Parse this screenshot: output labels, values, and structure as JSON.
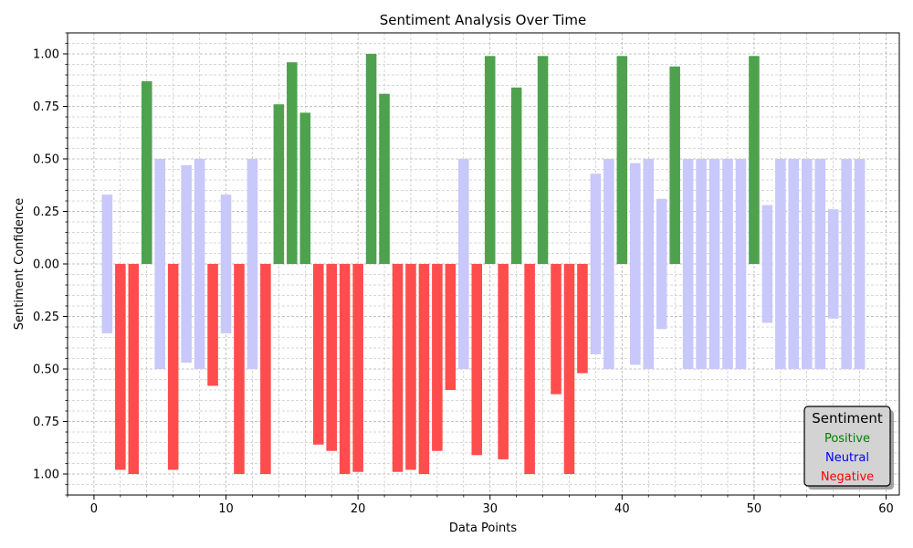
{
  "chart_data": {
    "type": "bar",
    "title": "Sentiment Analysis Over Time",
    "xlabel": "Data Points",
    "ylabel": "Sentiment Confidence",
    "xlim": [
      -2,
      61
    ],
    "ylim": [
      -1.1,
      1.1
    ],
    "x_ticks": [
      0,
      10,
      20,
      30,
      40,
      50,
      60
    ],
    "y_ticks": [
      1.0,
      0.75,
      0.5,
      0.25,
      0.0,
      -0.25,
      -0.5,
      -0.75,
      -1.0
    ],
    "y_tick_labels": [
      "1.00",
      "0.75",
      "0.50",
      "0.25",
      "0.00",
      "0.25",
      "0.50",
      "0.75",
      "1.00"
    ],
    "grid": true,
    "legend": {
      "title": "Sentiment",
      "placement": "lower-right",
      "entries": [
        {
          "label": "Positive",
          "color": "#008000"
        },
        {
          "label": "Neutral",
          "color": "#0000ff"
        },
        {
          "label": "Negative",
          "color": "#ff0000"
        }
      ]
    },
    "colors": {
      "Positive": "#4ea24e",
      "Neutral": "#c8c8fa",
      "Negative": "#ff4d4d"
    },
    "bars": [
      {
        "x": 1,
        "s": "Neutral",
        "v": 0.33
      },
      {
        "x": 2,
        "s": "Negative",
        "v": 0.98
      },
      {
        "x": 3,
        "s": "Negative",
        "v": 1.0
      },
      {
        "x": 4,
        "s": "Positive",
        "v": 0.87
      },
      {
        "x": 5,
        "s": "Neutral",
        "v": 0.5
      },
      {
        "x": 6,
        "s": "Negative",
        "v": 0.98
      },
      {
        "x": 7,
        "s": "Neutral",
        "v": 0.47
      },
      {
        "x": 8,
        "s": "Neutral",
        "v": 0.5
      },
      {
        "x": 9,
        "s": "Negative",
        "v": 0.58
      },
      {
        "x": 10,
        "s": "Neutral",
        "v": 0.33
      },
      {
        "x": 11,
        "s": "Negative",
        "v": 1.0
      },
      {
        "x": 12,
        "s": "Neutral",
        "v": 0.5
      },
      {
        "x": 13,
        "s": "Negative",
        "v": 1.0
      },
      {
        "x": 14,
        "s": "Positive",
        "v": 0.76
      },
      {
        "x": 15,
        "s": "Positive",
        "v": 0.96
      },
      {
        "x": 16,
        "s": "Positive",
        "v": 0.72
      },
      {
        "x": 17,
        "s": "Negative",
        "v": 0.86
      },
      {
        "x": 18,
        "s": "Negative",
        "v": 0.89
      },
      {
        "x": 19,
        "s": "Negative",
        "v": 1.0
      },
      {
        "x": 20,
        "s": "Negative",
        "v": 0.99
      },
      {
        "x": 21,
        "s": "Positive",
        "v": 1.0
      },
      {
        "x": 22,
        "s": "Positive",
        "v": 0.81
      },
      {
        "x": 23,
        "s": "Negative",
        "v": 0.99
      },
      {
        "x": 24,
        "s": "Negative",
        "v": 0.98
      },
      {
        "x": 25,
        "s": "Negative",
        "v": 1.0
      },
      {
        "x": 26,
        "s": "Negative",
        "v": 0.89
      },
      {
        "x": 27,
        "s": "Negative",
        "v": 0.6
      },
      {
        "x": 28,
        "s": "Neutral",
        "v": 0.5
      },
      {
        "x": 29,
        "s": "Negative",
        "v": 0.91
      },
      {
        "x": 30,
        "s": "Positive",
        "v": 0.99
      },
      {
        "x": 31,
        "s": "Negative",
        "v": 0.93
      },
      {
        "x": 32,
        "s": "Positive",
        "v": 0.84
      },
      {
        "x": 33,
        "s": "Negative",
        "v": 1.0
      },
      {
        "x": 34,
        "s": "Positive",
        "v": 0.99
      },
      {
        "x": 35,
        "s": "Negative",
        "v": 0.62
      },
      {
        "x": 36,
        "s": "Negative",
        "v": 1.0
      },
      {
        "x": 37,
        "s": "Negative",
        "v": 0.52
      },
      {
        "x": 38,
        "s": "Neutral",
        "v": 0.43
      },
      {
        "x": 39,
        "s": "Neutral",
        "v": 0.5
      },
      {
        "x": 40,
        "s": "Positive",
        "v": 0.99
      },
      {
        "x": 41,
        "s": "Neutral",
        "v": 0.48
      },
      {
        "x": 42,
        "s": "Neutral",
        "v": 0.5
      },
      {
        "x": 43,
        "s": "Neutral",
        "v": 0.31
      },
      {
        "x": 44,
        "s": "Positive",
        "v": 0.94
      },
      {
        "x": 45,
        "s": "Neutral",
        "v": 0.5
      },
      {
        "x": 46,
        "s": "Neutral",
        "v": 0.5
      },
      {
        "x": 47,
        "s": "Neutral",
        "v": 0.5
      },
      {
        "x": 48,
        "s": "Neutral",
        "v": 0.5
      },
      {
        "x": 49,
        "s": "Neutral",
        "v": 0.5
      },
      {
        "x": 50,
        "s": "Positive",
        "v": 0.99
      },
      {
        "x": 51,
        "s": "Neutral",
        "v": 0.28
      },
      {
        "x": 52,
        "s": "Neutral",
        "v": 0.5
      },
      {
        "x": 53,
        "s": "Neutral",
        "v": 0.5
      },
      {
        "x": 54,
        "s": "Neutral",
        "v": 0.5
      },
      {
        "x": 55,
        "s": "Neutral",
        "v": 0.5
      },
      {
        "x": 56,
        "s": "Neutral",
        "v": 0.26
      },
      {
        "x": 57,
        "s": "Neutral",
        "v": 0.5
      },
      {
        "x": 58,
        "s": "Neutral",
        "v": 0.5
      }
    ]
  }
}
